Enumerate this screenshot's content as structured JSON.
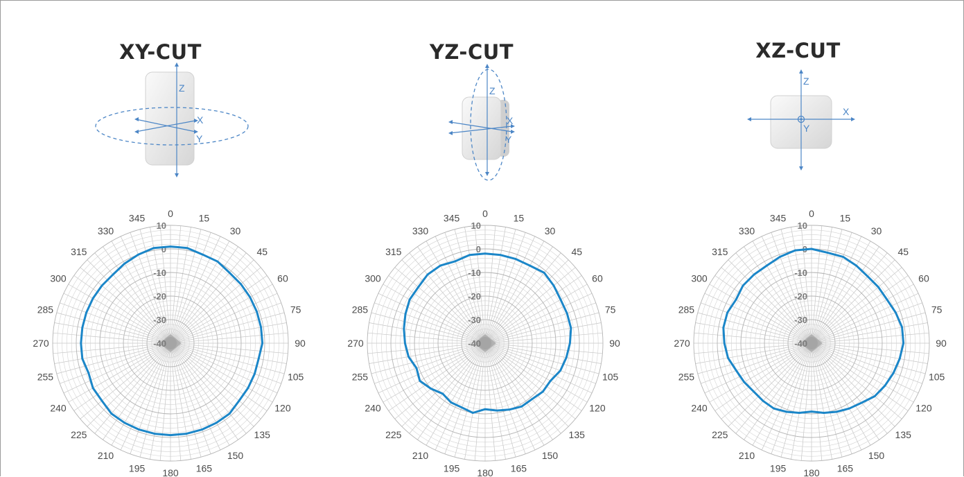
{
  "chart_data": [
    {
      "type": "polar-line",
      "title": "XY-CUT",
      "angle_labels": [
        "0",
        "15",
        "30",
        "45",
        "60",
        "75",
        "90",
        "105",
        "120",
        "135",
        "150",
        "165",
        "180",
        "195",
        "210",
        "225",
        "240",
        "255",
        "270",
        "285",
        "300",
        "315",
        "330",
        "345"
      ],
      "radial_labels": [
        "10",
        "0",
        "-10",
        "-20",
        "-30",
        "-40"
      ],
      "rlim": [
        -40,
        10
      ],
      "axis_labels": [
        "Z",
        "X",
        "Y"
      ],
      "series": [
        {
          "color": "#1b86c8",
          "theta": [
            0,
            10,
            20,
            30,
            40,
            50,
            60,
            70,
            80,
            90,
            100,
            110,
            120,
            130,
            140,
            150,
            160,
            170,
            180,
            190,
            200,
            210,
            220,
            230,
            240,
            250,
            260,
            270,
            280,
            290,
            300,
            310,
            320,
            330,
            340,
            350
          ],
          "r": [
            1,
            1,
            0,
            0,
            -1,
            -1,
            -1,
            -1,
            -1,
            -1,
            -2,
            -2,
            -2,
            -2,
            -1,
            -1,
            -1,
            -1,
            -1,
            -1,
            -1,
            -1,
            -1,
            -2,
            -2,
            -3,
            -2,
            -2,
            -2,
            -2,
            -2,
            -2,
            -2,
            -1,
            0,
            1
          ]
        }
      ]
    },
    {
      "type": "polar-line",
      "title": "YZ-CUT",
      "angle_labels": [
        "0",
        "15",
        "30",
        "45",
        "60",
        "75",
        "90",
        "105",
        "120",
        "135",
        "150",
        "165",
        "180",
        "195",
        "210",
        "225",
        "240",
        "255",
        "270",
        "285",
        "300",
        "315",
        "330",
        "345"
      ],
      "radial_labels": [
        "10",
        "0",
        "-10",
        "-20",
        "-30",
        "-40"
      ],
      "rlim": [
        -40,
        10
      ],
      "axis_labels": [
        "Z",
        "X",
        "Y"
      ],
      "series": [
        {
          "color": "#1b86c8",
          "theta": [
            0,
            10,
            20,
            30,
            40,
            50,
            60,
            70,
            80,
            90,
            100,
            110,
            120,
            130,
            140,
            150,
            160,
            170,
            180,
            190,
            200,
            210,
            220,
            230,
            240,
            250,
            260,
            270,
            280,
            290,
            300,
            310,
            320,
            330,
            340,
            350
          ],
          "r": [
            -2,
            -2,
            -2,
            -2,
            -1,
            -2,
            -3,
            -3,
            -3,
            -4,
            -5,
            -6,
            -8,
            -8,
            -9,
            -9,
            -10,
            -11,
            -12,
            -10,
            -11,
            -11,
            -12,
            -10,
            -8,
            -9,
            -7,
            -6,
            -5,
            -4,
            -3,
            -3,
            -2,
            -2,
            -3,
            -2
          ]
        }
      ]
    },
    {
      "type": "polar-line",
      "title": "XZ-CUT",
      "angle_labels": [
        "0",
        "15",
        "30",
        "45",
        "60",
        "75",
        "90",
        "105",
        "120",
        "135",
        "150",
        "165",
        "180",
        "195",
        "210",
        "225",
        "240",
        "255",
        "270",
        "285",
        "300",
        "315",
        "330",
        "345"
      ],
      "radial_labels": [
        "10",
        "0",
        "-10",
        "-20",
        "-30",
        "-40"
      ],
      "rlim": [
        -40,
        10
      ],
      "axis_labels": [
        "Z",
        "X",
        "Y"
      ],
      "series": [
        {
          "color": "#1b86c8",
          "theta": [
            0,
            10,
            20,
            30,
            40,
            50,
            60,
            70,
            80,
            90,
            100,
            110,
            120,
            130,
            140,
            150,
            160,
            170,
            180,
            190,
            200,
            210,
            220,
            230,
            240,
            250,
            260,
            270,
            280,
            290,
            300,
            310,
            320,
            330,
            340,
            350
          ],
          "r": [
            0,
            -1,
            -1,
            -2,
            -3,
            -3,
            -3,
            -2,
            -1,
            -1,
            -2,
            -3,
            -4,
            -5,
            -7,
            -8,
            -9,
            -10,
            -11,
            -10,
            -9,
            -8,
            -8,
            -8,
            -7,
            -6,
            -4,
            -3,
            -2,
            -2,
            -3,
            -2,
            -2,
            -2,
            -1,
            0
          ]
        }
      ]
    }
  ]
}
